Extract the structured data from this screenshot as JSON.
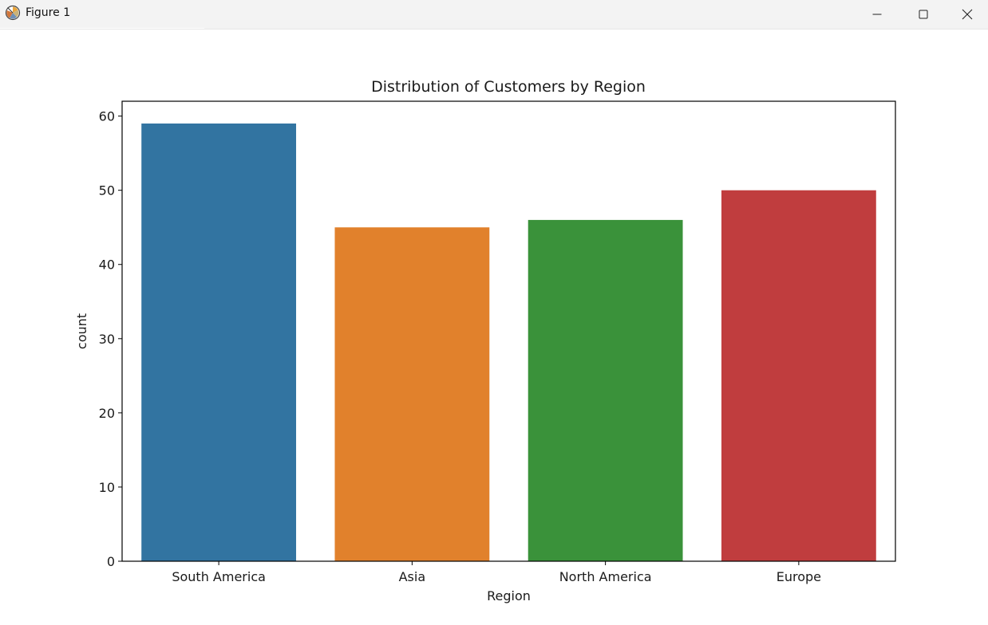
{
  "window": {
    "title": "Figure 1",
    "icon": "matplotlib-figure-icon",
    "controls": [
      "minimize-icon",
      "maximize-icon",
      "close-icon"
    ]
  },
  "chart_data": {
    "type": "bar",
    "title": "Distribution of Customers by Region",
    "xlabel": "Region",
    "ylabel": "count",
    "categories": [
      "South America",
      "Asia",
      "North America",
      "Europe"
    ],
    "values": [
      59,
      45,
      46,
      50
    ],
    "colors": [
      "#3274a1",
      "#e1812c",
      "#3a923a",
      "#c03d3e"
    ],
    "ylim": [
      0,
      62
    ],
    "yticks": [
      0,
      10,
      20,
      30,
      40,
      50,
      60
    ],
    "grid": false,
    "legend": "none"
  }
}
